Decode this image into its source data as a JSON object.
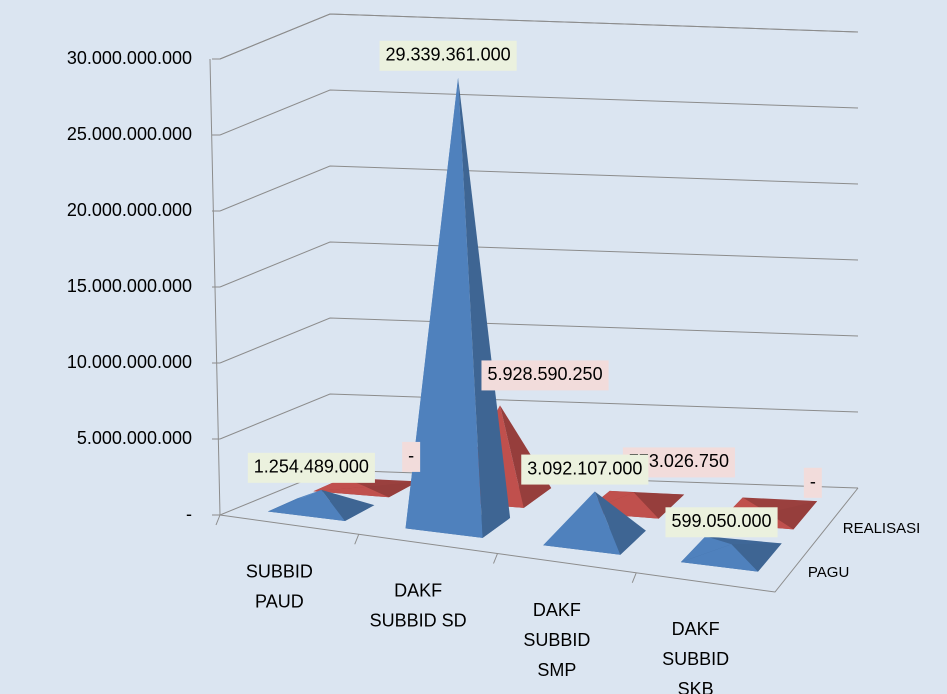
{
  "chart_data": {
    "type": "pyramid3d",
    "categories": [
      [
        "SUBBID",
        "PAUD"
      ],
      [
        "DAKF",
        "SUBBID SD"
      ],
      [
        "DAKF",
        "SUBBID",
        "SMP"
      ],
      [
        "DAKF",
        "SUBBID",
        "SKB"
      ]
    ],
    "series": [
      {
        "name": "PAGU",
        "color": "#4f81bd",
        "label_fill": "#ebf1de",
        "values": [
          1254489000,
          29339361000,
          3092107000,
          599050000
        ],
        "value_labels": [
          "1.254.489.000",
          "29.339.361.000",
          "3.092.107.000",
          "599.050.000"
        ]
      },
      {
        "name": "REALISASI",
        "color": "#c0504d",
        "label_fill": "#f2dcdb",
        "values": [
          0,
          5928590250,
          773026750,
          0
        ],
        "value_labels": [
          "-",
          "5.928.590.250",
          "773.026.750",
          "-"
        ]
      }
    ],
    "ylim": [
      0,
      30000000000
    ],
    "yticks": [
      {
        "value": 0,
        "label": "-"
      },
      {
        "value": 5000000000,
        "label": "5.000.000.000"
      },
      {
        "value": 10000000000,
        "label": "10.000.000.000"
      },
      {
        "value": 15000000000,
        "label": "15.000.000.000"
      },
      {
        "value": 20000000000,
        "label": "20.000.000.000"
      },
      {
        "value": 25000000000,
        "label": "25.000.000.000"
      },
      {
        "value": 30000000000,
        "label": "30.000.000.000"
      }
    ],
    "grid": true
  }
}
